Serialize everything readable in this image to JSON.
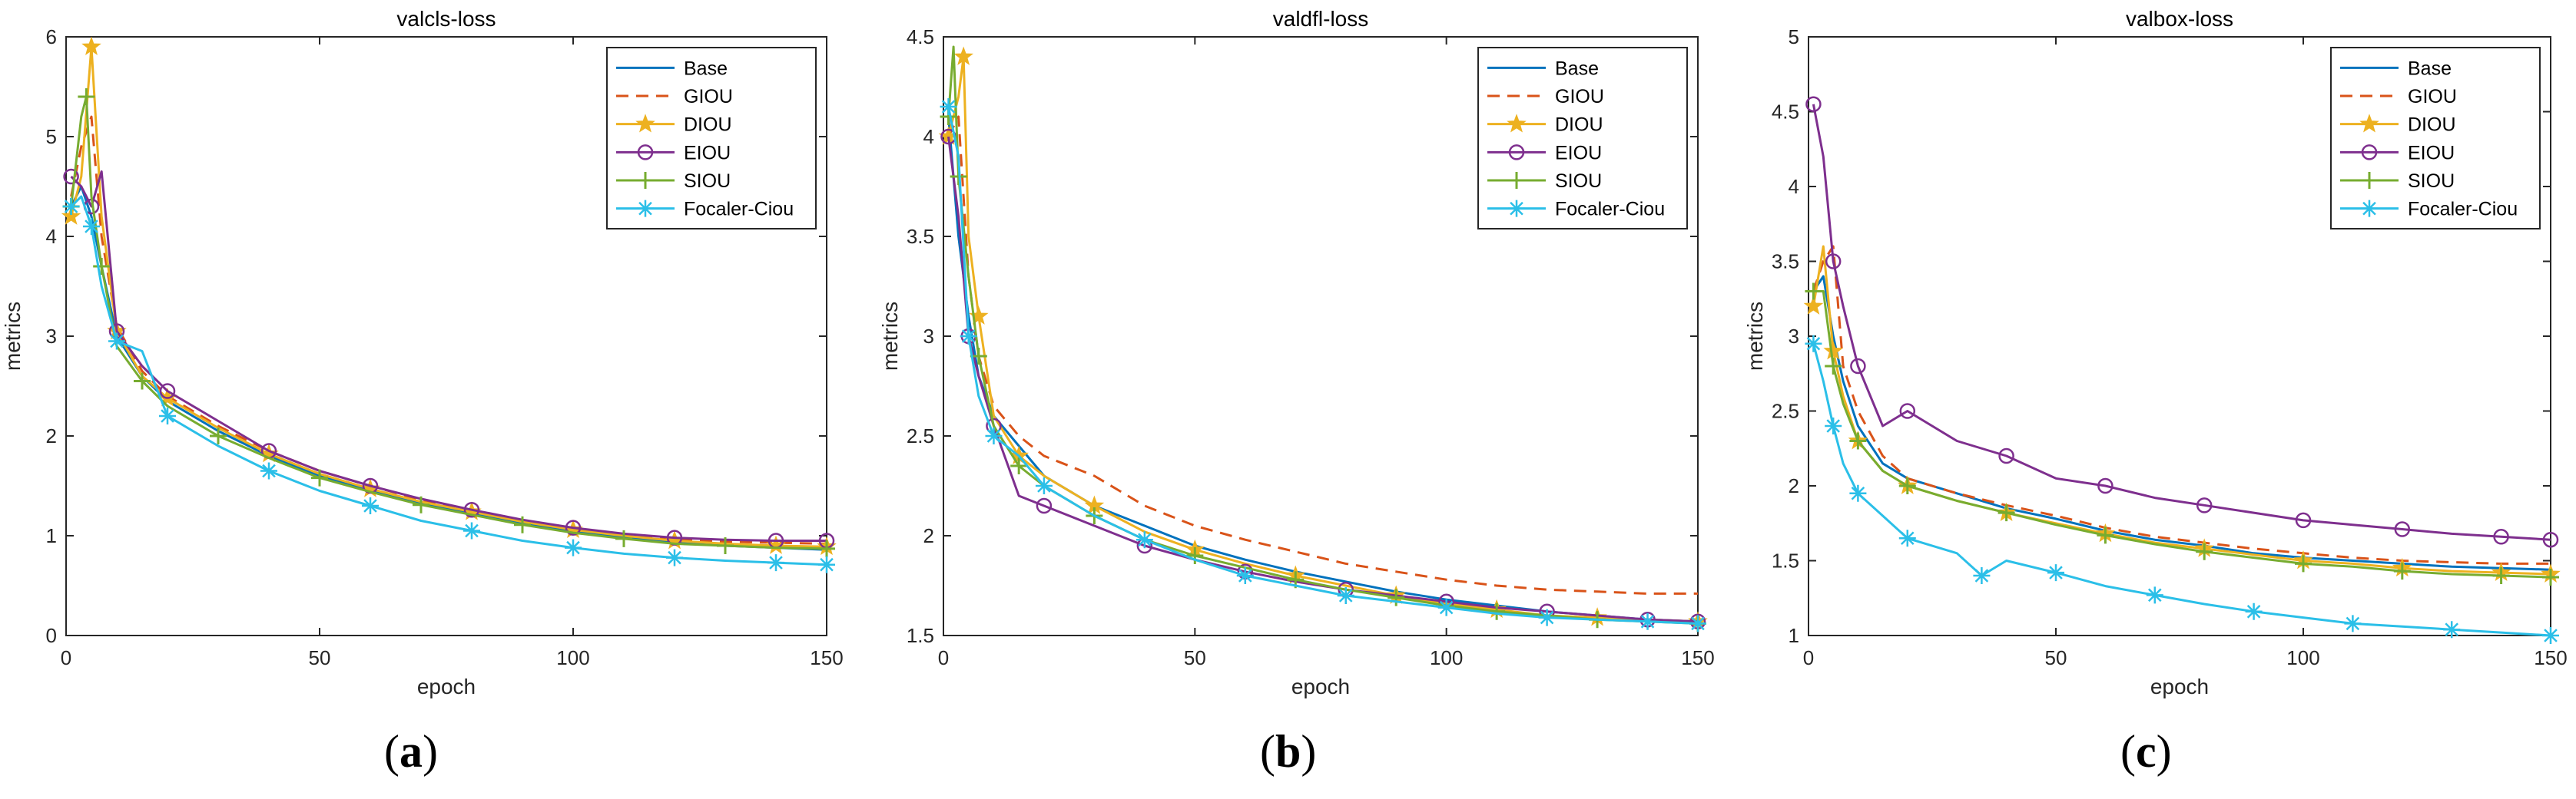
{
  "chart_data": [
    {
      "type": "line",
      "title": "valcls-loss",
      "xlabel": "epoch",
      "ylabel": "metrics",
      "xlim": [
        0,
        150
      ],
      "ylim": [
        0,
        6
      ],
      "xticks": [
        0,
        50,
        100,
        150
      ],
      "yticks": [
        0,
        1,
        2,
        3,
        4,
        5,
        6
      ],
      "legend_position": "top-right",
      "panel_label": "a",
      "series": [
        {
          "name": "Base",
          "color": "#0072BD",
          "style": "solid",
          "marker": "none",
          "x": [
            1,
            3,
            5,
            7,
            10,
            15,
            20,
            30,
            40,
            50,
            60,
            70,
            80,
            90,
            100,
            110,
            120,
            130,
            140,
            150
          ],
          "y": [
            4.3,
            4.5,
            4.2,
            3.7,
            3.0,
            2.6,
            2.35,
            2.05,
            1.8,
            1.6,
            1.45,
            1.32,
            1.22,
            1.12,
            1.04,
            0.98,
            0.93,
            0.9,
            0.88,
            0.86
          ]
        },
        {
          "name": "GIOU",
          "color": "#D95319",
          "style": "dashed",
          "marker": "none",
          "x": [
            1,
            3,
            5,
            7,
            10,
            15,
            20,
            30,
            40,
            50,
            60,
            70,
            80,
            90,
            100,
            110,
            120,
            130,
            140,
            150
          ],
          "y": [
            4.4,
            4.9,
            5.2,
            4.0,
            3.1,
            2.65,
            2.4,
            2.1,
            1.85,
            1.65,
            1.5,
            1.36,
            1.25,
            1.15,
            1.07,
            1.01,
            0.97,
            0.94,
            0.93,
            0.92
          ]
        },
        {
          "name": "DIOU",
          "color": "#EDB120",
          "style": "solid",
          "marker": "star",
          "x": [
            1,
            3,
            5,
            7,
            10,
            15,
            20,
            30,
            40,
            50,
            60,
            70,
            80,
            90,
            100,
            110,
            120,
            130,
            140,
            150
          ],
          "y": [
            4.2,
            4.6,
            5.9,
            4.2,
            3.05,
            2.6,
            2.38,
            2.08,
            1.82,
            1.62,
            1.47,
            1.34,
            1.24,
            1.14,
            1.06,
            1.0,
            0.95,
            0.92,
            0.9,
            0.89
          ]
        },
        {
          "name": "EIOU",
          "color": "#7E2F8E",
          "style": "solid",
          "marker": "circle",
          "x": [
            1,
            3,
            5,
            7,
            10,
            15,
            20,
            30,
            40,
            50,
            60,
            70,
            80,
            90,
            100,
            110,
            120,
            130,
            140,
            150
          ],
          "y": [
            4.6,
            4.5,
            4.3,
            4.65,
            3.05,
            2.7,
            2.45,
            2.15,
            1.85,
            1.65,
            1.5,
            1.37,
            1.26,
            1.16,
            1.08,
            1.02,
            0.98,
            0.96,
            0.95,
            0.95
          ]
        },
        {
          "name": "SIOU",
          "color": "#77AC30",
          "style": "solid",
          "marker": "plus",
          "x": [
            1,
            3,
            4,
            5,
            7,
            10,
            15,
            20,
            30,
            40,
            50,
            60,
            70,
            80,
            90,
            100,
            110,
            120,
            130,
            140,
            150
          ],
          "y": [
            4.3,
            5.2,
            5.4,
            4.4,
            3.7,
            2.9,
            2.55,
            2.3,
            2.0,
            1.78,
            1.58,
            1.44,
            1.31,
            1.21,
            1.11,
            1.03,
            0.97,
            0.92,
            0.9,
            0.88,
            0.87
          ]
        },
        {
          "name": "Focaler-Ciou",
          "color": "#2BBFE8",
          "style": "solid",
          "marker": "asterisk",
          "x": [
            1,
            3,
            5,
            7,
            10,
            15,
            20,
            30,
            40,
            50,
            60,
            70,
            80,
            90,
            100,
            110,
            120,
            130,
            140,
            150
          ],
          "y": [
            4.3,
            4.4,
            4.1,
            3.5,
            2.95,
            2.85,
            2.2,
            1.9,
            1.65,
            1.45,
            1.3,
            1.15,
            1.05,
            0.95,
            0.88,
            0.82,
            0.78,
            0.75,
            0.73,
            0.71
          ]
        }
      ]
    },
    {
      "type": "line",
      "title": "valdfl-loss",
      "xlabel": "epoch",
      "ylabel": "metrics",
      "xlim": [
        0,
        150
      ],
      "ylim": [
        1.5,
        4.5
      ],
      "xticks": [
        0,
        50,
        100,
        150
      ],
      "yticks": [
        1.5,
        2,
        2.5,
        3,
        3.5,
        4,
        4.5
      ],
      "legend_position": "top-right",
      "panel_label": "b",
      "series": [
        {
          "name": "Base",
          "color": "#0072BD",
          "style": "solid",
          "marker": "none",
          "x": [
            1,
            3,
            5,
            7,
            10,
            15,
            20,
            30,
            40,
            50,
            60,
            70,
            80,
            90,
            100,
            110,
            120,
            130,
            140,
            150
          ],
          "y": [
            4.1,
            3.5,
            3.1,
            2.8,
            2.6,
            2.45,
            2.3,
            2.15,
            2.05,
            1.95,
            1.88,
            1.82,
            1.77,
            1.72,
            1.68,
            1.65,
            1.62,
            1.6,
            1.58,
            1.57
          ]
        },
        {
          "name": "GIOU",
          "color": "#D95319",
          "style": "dashed",
          "marker": "none",
          "x": [
            1,
            3,
            5,
            7,
            10,
            15,
            20,
            30,
            40,
            50,
            60,
            70,
            80,
            90,
            100,
            110,
            120,
            130,
            140,
            150
          ],
          "y": [
            4.0,
            4.1,
            3.3,
            2.9,
            2.65,
            2.5,
            2.4,
            2.3,
            2.15,
            2.05,
            1.98,
            1.92,
            1.86,
            1.82,
            1.78,
            1.75,
            1.73,
            1.72,
            1.71,
            1.71
          ]
        },
        {
          "name": "DIOU",
          "color": "#EDB120",
          "style": "solid",
          "marker": "star",
          "x": [
            1,
            3,
            4,
            5,
            7,
            10,
            15,
            20,
            30,
            40,
            50,
            60,
            70,
            80,
            90,
            100,
            110,
            120,
            130,
            140,
            150
          ],
          "y": [
            4.0,
            4.2,
            4.4,
            3.5,
            3.1,
            2.6,
            2.4,
            2.3,
            2.15,
            2.02,
            1.93,
            1.86,
            1.8,
            1.75,
            1.7,
            1.66,
            1.63,
            1.6,
            1.59,
            1.58,
            1.57
          ]
        },
        {
          "name": "EIOU",
          "color": "#7E2F8E",
          "style": "solid",
          "marker": "circle",
          "x": [
            1,
            3,
            5,
            7,
            10,
            15,
            20,
            30,
            40,
            50,
            60,
            70,
            80,
            90,
            100,
            110,
            120,
            130,
            140,
            150
          ],
          "y": [
            4.0,
            3.6,
            3.0,
            2.8,
            2.55,
            2.2,
            2.15,
            2.05,
            1.95,
            1.88,
            1.82,
            1.77,
            1.73,
            1.7,
            1.67,
            1.64,
            1.62,
            1.6,
            1.58,
            1.57
          ]
        },
        {
          "name": "SIOU",
          "color": "#77AC30",
          "style": "solid",
          "marker": "plus",
          "x": [
            1,
            2,
            3,
            5,
            7,
            10,
            15,
            20,
            30,
            40,
            50,
            60,
            70,
            80,
            90,
            100,
            110,
            120,
            130,
            140,
            150
          ],
          "y": [
            4.1,
            4.45,
            3.8,
            3.3,
            2.9,
            2.55,
            2.35,
            2.25,
            2.1,
            1.98,
            1.9,
            1.84,
            1.78,
            1.73,
            1.69,
            1.65,
            1.62,
            1.6,
            1.58,
            1.57,
            1.56
          ]
        },
        {
          "name": "Focaler-Ciou",
          "color": "#2BBFE8",
          "style": "solid",
          "marker": "asterisk",
          "x": [
            1,
            3,
            5,
            7,
            10,
            15,
            20,
            30,
            40,
            50,
            60,
            70,
            80,
            90,
            100,
            110,
            120,
            130,
            140,
            150
          ],
          "y": [
            4.15,
            3.9,
            3.0,
            2.7,
            2.5,
            2.4,
            2.25,
            2.1,
            1.98,
            1.88,
            1.8,
            1.75,
            1.7,
            1.67,
            1.64,
            1.61,
            1.59,
            1.58,
            1.57,
            1.56
          ]
        }
      ]
    },
    {
      "type": "line",
      "title": "valbox-loss",
      "xlabel": "epoch",
      "ylabel": "metrics",
      "xlim": [
        0,
        150
      ],
      "ylim": [
        1,
        5
      ],
      "xticks": [
        0,
        50,
        100,
        150
      ],
      "yticks": [
        1,
        1.5,
        2,
        2.5,
        3,
        3.5,
        4,
        4.5,
        5
      ],
      "legend_position": "top-right",
      "panel_label": "c",
      "series": [
        {
          "name": "Base",
          "color": "#0072BD",
          "style": "solid",
          "marker": "none",
          "x": [
            1,
            3,
            5,
            7,
            10,
            15,
            20,
            30,
            40,
            50,
            60,
            70,
            80,
            90,
            100,
            110,
            120,
            130,
            140,
            150
          ],
          "y": [
            3.3,
            3.4,
            3.0,
            2.7,
            2.4,
            2.15,
            2.05,
            1.95,
            1.85,
            1.78,
            1.7,
            1.64,
            1.6,
            1.55,
            1.52,
            1.5,
            1.48,
            1.46,
            1.45,
            1.44
          ]
        },
        {
          "name": "GIOU",
          "color": "#D95319",
          "style": "dashed",
          "marker": "none",
          "x": [
            1,
            3,
            5,
            7,
            10,
            15,
            20,
            30,
            40,
            50,
            60,
            70,
            80,
            90,
            100,
            110,
            120,
            130,
            140,
            150
          ],
          "y": [
            3.3,
            3.5,
            3.6,
            2.8,
            2.5,
            2.2,
            2.05,
            1.95,
            1.87,
            1.8,
            1.72,
            1.66,
            1.62,
            1.58,
            1.55,
            1.52,
            1.5,
            1.49,
            1.48,
            1.48
          ]
        },
        {
          "name": "DIOU",
          "color": "#EDB120",
          "style": "solid",
          "marker": "star",
          "x": [
            1,
            3,
            5,
            7,
            10,
            15,
            20,
            30,
            40,
            50,
            60,
            70,
            80,
            90,
            100,
            110,
            120,
            130,
            140,
            150
          ],
          "y": [
            3.2,
            3.6,
            2.9,
            2.6,
            2.3,
            2.1,
            2.0,
            1.9,
            1.82,
            1.75,
            1.68,
            1.62,
            1.58,
            1.54,
            1.5,
            1.48,
            1.45,
            1.43,
            1.42,
            1.41
          ]
        },
        {
          "name": "EIOU",
          "color": "#7E2F8E",
          "style": "solid",
          "marker": "circle",
          "x": [
            1,
            3,
            5,
            7,
            10,
            15,
            20,
            30,
            40,
            50,
            60,
            70,
            80,
            90,
            100,
            110,
            120,
            130,
            140,
            150
          ],
          "y": [
            4.55,
            4.2,
            3.5,
            3.2,
            2.8,
            2.4,
            2.5,
            2.3,
            2.2,
            2.05,
            2.0,
            1.92,
            1.87,
            1.82,
            1.77,
            1.74,
            1.71,
            1.68,
            1.66,
            1.64
          ]
        },
        {
          "name": "SIOU",
          "color": "#77AC30",
          "style": "solid",
          "marker": "plus",
          "x": [
            1,
            3,
            5,
            7,
            10,
            15,
            20,
            30,
            40,
            50,
            60,
            70,
            80,
            90,
            100,
            110,
            120,
            130,
            140,
            150
          ],
          "y": [
            3.3,
            3.3,
            2.8,
            2.55,
            2.3,
            2.1,
            2.0,
            1.9,
            1.82,
            1.74,
            1.67,
            1.61,
            1.56,
            1.52,
            1.48,
            1.46,
            1.43,
            1.41,
            1.4,
            1.39
          ]
        },
        {
          "name": "Focaler-Ciou",
          "color": "#2BBFE8",
          "style": "solid",
          "marker": "asterisk",
          "x": [
            1,
            3,
            5,
            7,
            10,
            15,
            20,
            30,
            35,
            40,
            50,
            60,
            70,
            80,
            90,
            100,
            110,
            120,
            130,
            140,
            150
          ],
          "y": [
            2.95,
            2.7,
            2.4,
            2.15,
            1.95,
            1.8,
            1.65,
            1.55,
            1.4,
            1.5,
            1.42,
            1.33,
            1.27,
            1.21,
            1.16,
            1.12,
            1.08,
            1.06,
            1.04,
            1.02,
            1.0
          ]
        }
      ]
    }
  ]
}
